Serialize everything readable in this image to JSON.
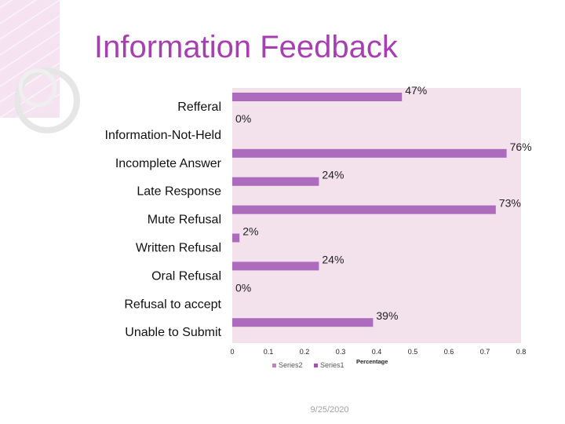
{
  "slide": {
    "title": "Information Feedback",
    "date": "9/25/2020"
  },
  "colors": {
    "title": "#a63fb0",
    "bar": "#ad6bbd",
    "plot_background": "#f3e1ec",
    "series2_legend": "#c77fc0",
    "series1_legend": "#a352b0",
    "decoration": "#f5dcee"
  },
  "chart_data": {
    "type": "bar",
    "orientation": "horizontal",
    "categories": [
      "Refferal",
      "Information-Not-Held",
      "Incomplete Answer",
      "Late Response",
      "Mute Refusal",
      "Written Refusal",
      "Oral Refusal",
      "Refusal to accept",
      "Unable to Submit"
    ],
    "series": [
      {
        "name": "Series1",
        "values": [
          0.47,
          0.0,
          0.76,
          0.24,
          0.73,
          0.02,
          0.24,
          0.0,
          0.39
        ]
      }
    ],
    "data_labels": [
      "47%",
      "0%",
      "76%",
      "24%",
      "73%",
      "2%",
      "24%",
      "0%",
      "39%"
    ],
    "x_ticks": [
      "0",
      "0.1",
      "0.2",
      "0.3",
      "0.4",
      "0.5",
      "0.6",
      "0.7",
      "0.8"
    ],
    "xlim": [
      0,
      0.8
    ],
    "xlabel": "Percentage",
    "legend": [
      "Series2",
      "Series1"
    ],
    "legend_position": "bottom",
    "grid": false
  }
}
